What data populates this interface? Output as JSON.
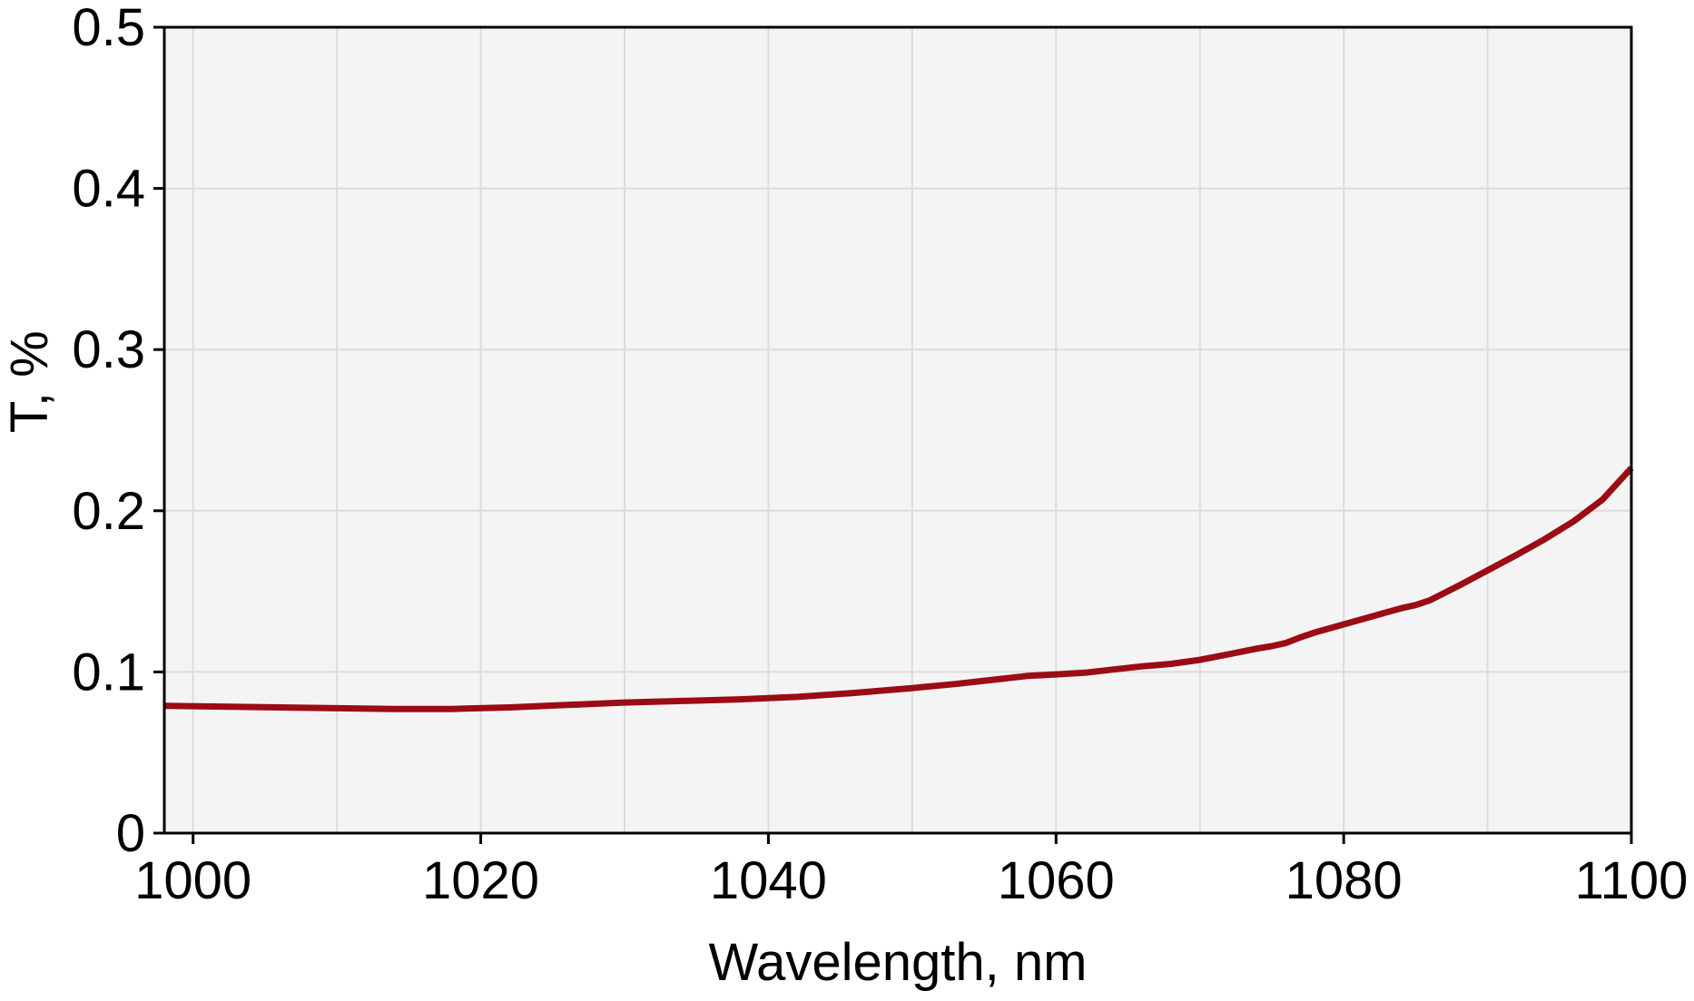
{
  "chart_data": {
    "type": "line",
    "title": "",
    "xlabel": "Wavelength, nm",
    "ylabel": "T, %",
    "xlim": [
      998,
      1100
    ],
    "ylim": [
      0,
      0.5
    ],
    "xticks": [
      1000,
      1020,
      1040,
      1060,
      1080,
      1100
    ],
    "xtick_labels": [
      "1000",
      "1020",
      "1040",
      "1060",
      "1080",
      "1100"
    ],
    "yticks": [
      0,
      0.1,
      0.2,
      0.3,
      0.4,
      0.5
    ],
    "ytick_labels": [
      "0",
      "0.1",
      "0.2",
      "0.3",
      "0.4",
      "0.5"
    ],
    "x_gridlines": [
      1000,
      1010,
      1020,
      1030,
      1040,
      1050,
      1060,
      1070,
      1080,
      1090,
      1100
    ],
    "grid": true,
    "legend": "none",
    "plot_background": "#f4f4f4",
    "grid_color": "#dcdcdc",
    "series": [
      {
        "color": "#9b0c14",
        "x": [
          998,
          1002,
          1006,
          1010,
          1014,
          1018,
          1022,
          1026,
          1030,
          1034,
          1038,
          1042,
          1046,
          1050,
          1053,
          1056,
          1058,
          1060,
          1062,
          1064,
          1066,
          1068,
          1070,
          1072,
          1074,
          1075,
          1076,
          1077,
          1078,
          1080,
          1082,
          1084,
          1085,
          1086,
          1088,
          1090,
          1092,
          1094,
          1096,
          1098,
          1100
        ],
        "y": [
          0.079,
          0.0785,
          0.078,
          0.0775,
          0.077,
          0.077,
          0.078,
          0.0795,
          0.081,
          0.082,
          0.083,
          0.0845,
          0.087,
          0.09,
          0.0925,
          0.0955,
          0.0975,
          0.0985,
          0.0995,
          0.1015,
          0.1035,
          0.105,
          0.1075,
          0.111,
          0.1145,
          0.116,
          0.118,
          0.1215,
          0.1245,
          0.1295,
          0.1345,
          0.1395,
          0.1415,
          0.1445,
          0.1535,
          0.163,
          0.1725,
          0.1825,
          0.1935,
          0.207,
          0.2265
        ]
      }
    ]
  }
}
